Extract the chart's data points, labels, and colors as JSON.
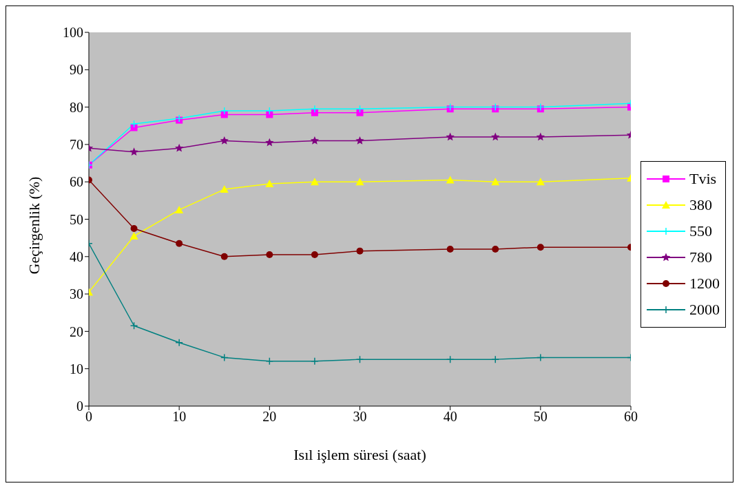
{
  "chart_data": {
    "type": "line",
    "xlabel": "Isıl işlem süresi (saat)",
    "ylabel": "Geçirgenlik (%)",
    "x": [
      0,
      5,
      10,
      15,
      20,
      25,
      30,
      40,
      45,
      50,
      60
    ],
    "xlim": [
      0,
      60
    ],
    "xticks": [
      0,
      10,
      20,
      30,
      40,
      50,
      60
    ],
    "ylim": [
      0,
      100
    ],
    "yticks": [
      0,
      10,
      20,
      30,
      40,
      50,
      60,
      70,
      80,
      90,
      100
    ],
    "grid": false,
    "legend": "right",
    "line_style": "solid",
    "series": [
      {
        "name": "Tvis",
        "color": "#ff00ff",
        "marker": "square",
        "values": [
          64.5,
          74.5,
          76.5,
          78,
          78,
          78.5,
          78.5,
          79.5,
          79.5,
          79.5,
          80
        ]
      },
      {
        "name": "380",
        "color": "#ffff00",
        "marker": "triangle",
        "values": [
          30.5,
          45.5,
          52.5,
          58,
          59.5,
          60,
          60,
          60.5,
          60,
          60,
          61
        ]
      },
      {
        "name": "550",
        "color": "#00ffff",
        "marker": "cross",
        "values": [
          64.5,
          75.5,
          77,
          79,
          79,
          79.5,
          79.5,
          80,
          80,
          80,
          81
        ]
      },
      {
        "name": "780",
        "color": "#800080",
        "marker": "star",
        "values": [
          69,
          68,
          69,
          71,
          70.5,
          71,
          71,
          72,
          72,
          72,
          72.5
        ]
      },
      {
        "name": "1200",
        "color": "#800000",
        "marker": "circle",
        "values": [
          60.5,
          47.5,
          43.5,
          40,
          40.5,
          40.5,
          41.5,
          42,
          42,
          42.5,
          42.5
        ]
      },
      {
        "name": "2000",
        "color": "#008080",
        "marker": "cross",
        "values": [
          43.5,
          21.5,
          17,
          13,
          12,
          12,
          12.5,
          12.5,
          12.5,
          13,
          13
        ]
      }
    ]
  }
}
